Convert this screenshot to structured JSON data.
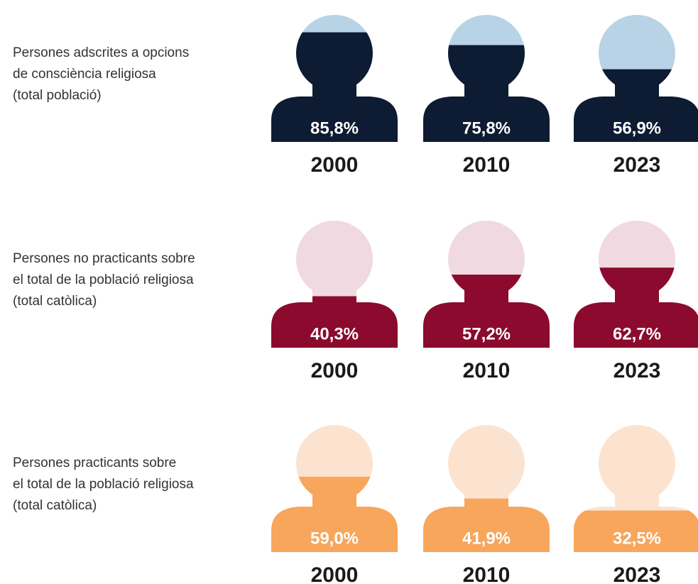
{
  "chart_data": [
    {
      "type": "pictogram",
      "label": [
        "Persones adscrites a opcions",
        "de consciència religiosa",
        "(total població)"
      ],
      "categories": [
        "2000",
        "2010",
        "2023"
      ],
      "values": [
        85.8,
        75.8,
        56.9
      ],
      "value_labels": [
        "85,8%",
        "75,8%",
        "56,9%"
      ],
      "color": "#0d1b33",
      "background_color": "#b9d3e6"
    },
    {
      "type": "pictogram",
      "label": [
        "Persones no practicants sobre",
        "el total de la població religiosa",
        "(total catòlica)"
      ],
      "categories": [
        "2000",
        "2010",
        "2023"
      ],
      "values": [
        40.3,
        57.2,
        62.7
      ],
      "value_labels": [
        "40,3%",
        "57,2%",
        "62,7%"
      ],
      "color": "#8b0a2e",
      "background_color": "#f0d9e0"
    },
    {
      "type": "pictogram",
      "label": [
        "Persones practicants sobre",
        "el total de la població religiosa",
        "(total catòlica)"
      ],
      "categories": [
        "2000",
        "2010",
        "2023"
      ],
      "values": [
        59.0,
        41.9,
        32.5
      ],
      "value_labels": [
        "59,0%",
        "41,9%",
        "32,5%"
      ],
      "color": "#f7a65c",
      "background_color": "#fbe3d0"
    }
  ]
}
